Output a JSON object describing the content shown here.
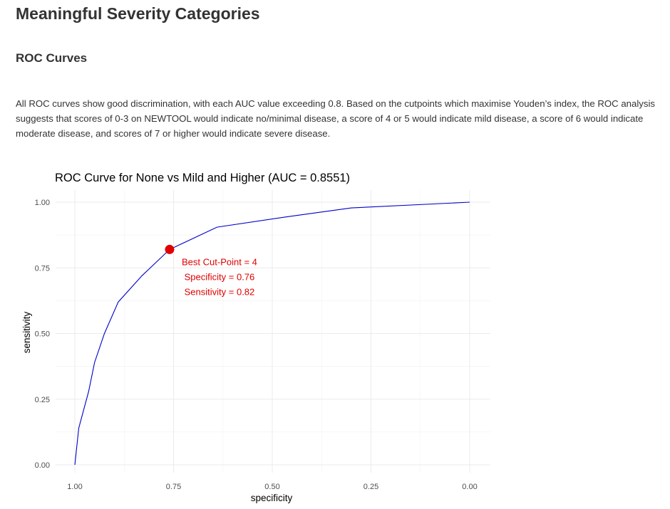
{
  "page": {
    "title": "Meaningful Severity Categories",
    "section_title": "ROC Curves",
    "paragraph": "All ROC curves show good discrimination, with each AUC value exceeding 0.8. Based on the cutpoints which maximise Youden’s index, the ROC analysis suggests that scores of 0-3 on NEWTOOL would indicate no/minimal disease, a score of 4 or 5 would indicate mild disease, a score of 6 would indicate moderate disease, and scores of 7 or higher would indicate severe disease."
  },
  "chart_data": {
    "type": "line",
    "title": "ROC Curve for None vs Mild and Higher (AUC = 0.8551)",
    "xlabel": "specificity",
    "ylabel": "sensitivity",
    "x_reversed": true,
    "xlim": [
      1.0,
      0.0
    ],
    "ylim": [
      0.0,
      1.0
    ],
    "x_ticks": [
      1.0,
      0.75,
      0.5,
      0.25,
      0.0
    ],
    "x_tick_labels": [
      "1.00",
      "0.75",
      "0.50",
      "0.25",
      "0.00"
    ],
    "y_ticks": [
      0.0,
      0.25,
      0.5,
      0.75,
      1.0
    ],
    "y_tick_labels": [
      "0.00",
      "0.25",
      "0.50",
      "0.75",
      "1.00"
    ],
    "grid": true,
    "series": [
      {
        "color": "#0000cc",
        "points": [
          [
            1.0,
            0.0
          ],
          [
            0.99,
            0.14
          ],
          [
            0.965,
            0.28
          ],
          [
            0.95,
            0.39
          ],
          [
            0.925,
            0.5
          ],
          [
            0.89,
            0.62
          ],
          [
            0.83,
            0.72
          ],
          [
            0.76,
            0.82
          ],
          [
            0.64,
            0.905
          ],
          [
            0.46,
            0.945
          ],
          [
            0.3,
            0.978
          ],
          [
            0.0,
            1.0
          ]
        ]
      }
    ],
    "highlight_point": {
      "x": 0.76,
      "y": 0.82,
      "color": "#e00000"
    },
    "annotation": {
      "color": "#e00000",
      "lines": [
        "Best Cut-Point = 4",
        "Specificity = 0.76",
        "Sensitivity = 0.82"
      ]
    }
  }
}
